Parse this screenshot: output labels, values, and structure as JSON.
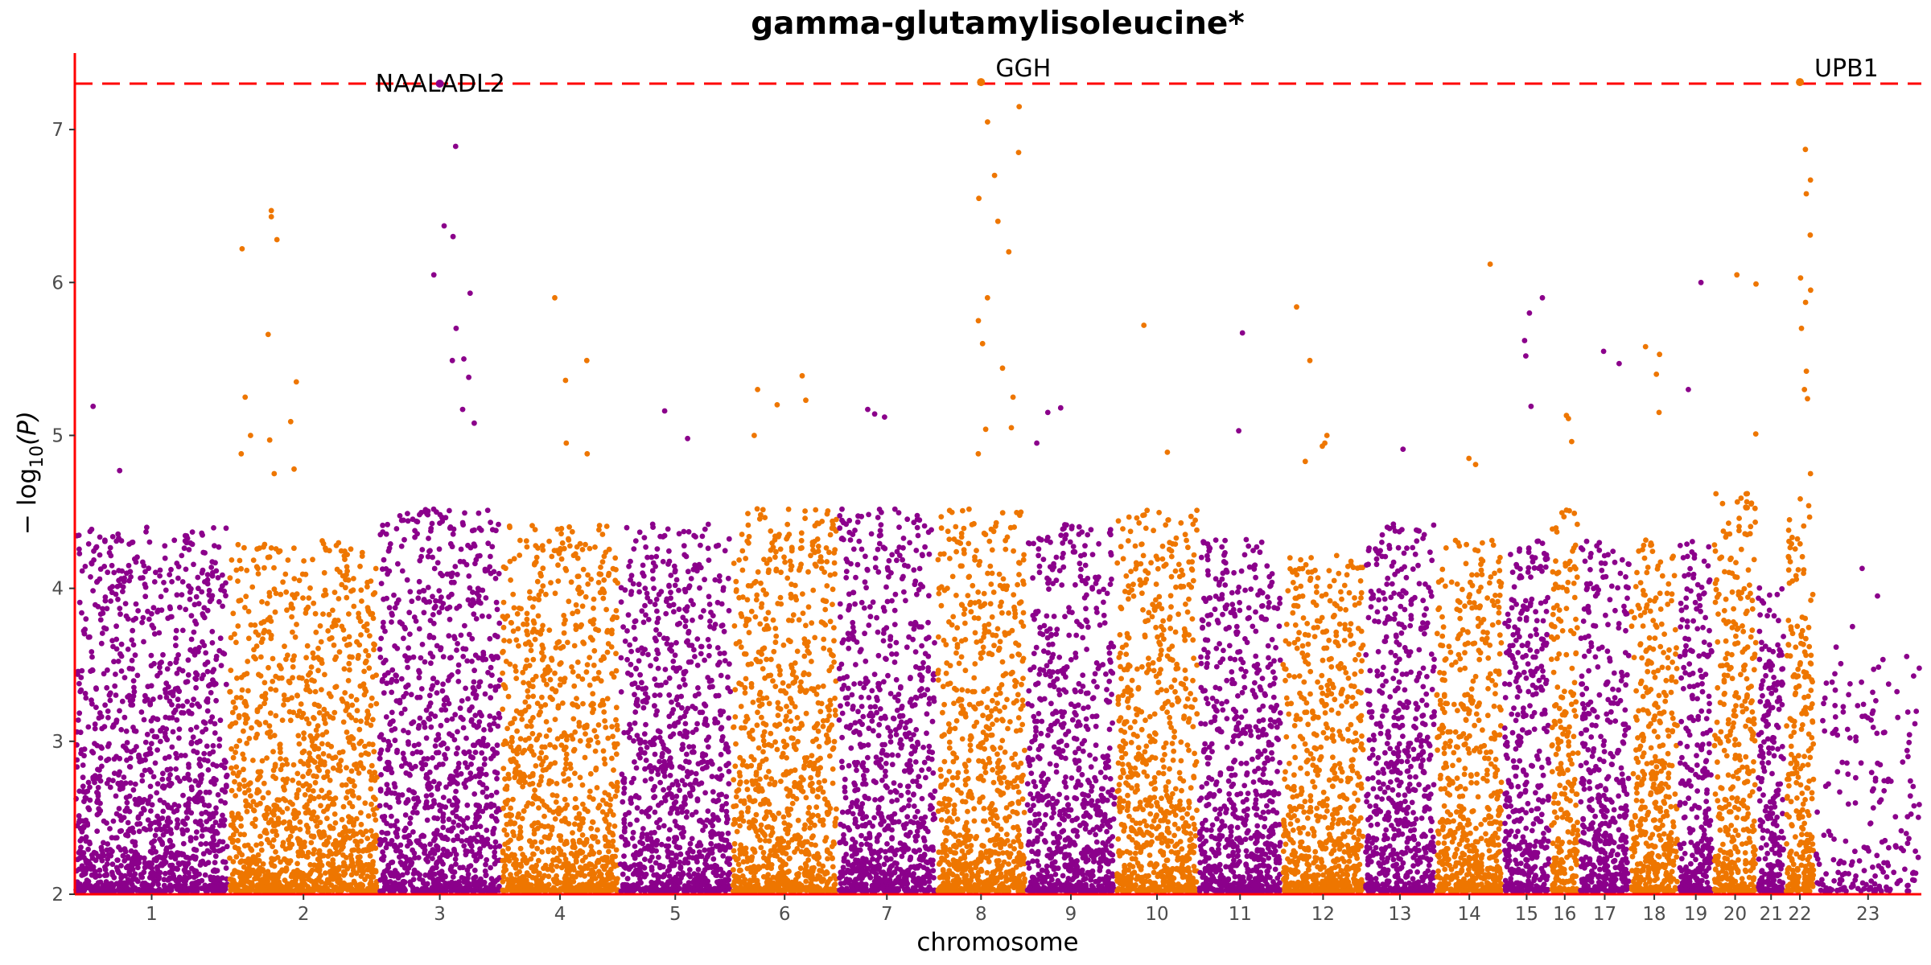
{
  "chart_data": {
    "type": "scatter",
    "subtype": "manhattan",
    "title": "gamma-glutamylisoleucine*",
    "xlabel": "chromosome",
    "ylabel": "−log10(P)",
    "ylim": [
      2,
      7.5
    ],
    "y_ticks": [
      2,
      3,
      4,
      5,
      6,
      7
    ],
    "grid": false,
    "legend": "none",
    "colors": {
      "odd": "#8B008B",
      "even": "#EE7600",
      "threshold": "#FF0000",
      "axis": "#FF0000"
    },
    "threshold": {
      "value": 7.3,
      "style": "dashed"
    },
    "chromosomes": [
      {
        "label": "1",
        "start": 0,
        "end": 248
      },
      {
        "label": "2",
        "start": 248,
        "end": 490
      },
      {
        "label": "3",
        "start": 490,
        "end": 688
      },
      {
        "label": "4",
        "start": 688,
        "end": 878
      },
      {
        "label": "5",
        "start": 878,
        "end": 1060
      },
      {
        "label": "6",
        "start": 1060,
        "end": 1231
      },
      {
        "label": "7",
        "start": 1231,
        "end": 1390
      },
      {
        "label": "8",
        "start": 1390,
        "end": 1535
      },
      {
        "label": "9",
        "start": 1535,
        "end": 1680
      },
      {
        "label": "10",
        "start": 1680,
        "end": 1813
      },
      {
        "label": "11",
        "start": 1813,
        "end": 1948
      },
      {
        "label": "12",
        "start": 1948,
        "end": 2081
      },
      {
        "label": "13",
        "start": 2081,
        "end": 2196
      },
      {
        "label": "14",
        "start": 2196,
        "end": 2305
      },
      {
        "label": "15",
        "start": 2305,
        "end": 2381
      },
      {
        "label": "16",
        "start": 2381,
        "end": 2428
      },
      {
        "label": "17",
        "start": 2428,
        "end": 2510
      },
      {
        "label": "18",
        "start": 2510,
        "end": 2588
      },
      {
        "label": "19",
        "start": 2588,
        "end": 2644
      },
      {
        "label": "20",
        "start": 2644,
        "end": 2715
      },
      {
        "label": "21",
        "start": 2715,
        "end": 2760
      },
      {
        "label": "22",
        "start": 2760,
        "end": 2808
      },
      {
        "label": "23",
        "start": 2808,
        "end": 2980
      }
    ],
    "annotated_hits": [
      {
        "gene": "NAALADL2",
        "chr": "3",
        "y": 7.3
      },
      {
        "gene": "GGH",
        "chr": "8",
        "y": 7.31
      },
      {
        "gene": "UPB1",
        "chr": "22",
        "y": 7.31
      }
    ],
    "peaks": [
      {
        "chr": "1",
        "y": 4.77
      },
      {
        "chr": "1",
        "y": 5.19
      },
      {
        "chr": "2",
        "y": 6.47
      },
      {
        "chr": "2",
        "y": 6.43
      },
      {
        "chr": "2",
        "y": 6.28
      },
      {
        "chr": "2",
        "y": 6.22
      },
      {
        "chr": "2",
        "y": 5.0
      },
      {
        "chr": "2",
        "y": 4.88
      },
      {
        "chr": "2",
        "y": 4.75
      },
      {
        "chr": "2",
        "y": 5.66
      },
      {
        "chr": "2",
        "y": 5.35
      },
      {
        "chr": "2",
        "y": 5.25
      },
      {
        "chr": "2",
        "y": 4.97
      },
      {
        "chr": "2",
        "y": 5.09
      },
      {
        "chr": "2",
        "y": 4.78
      },
      {
        "chr": "3",
        "y": 5.17
      },
      {
        "chr": "3",
        "y": 5.49
      },
      {
        "chr": "3",
        "y": 5.38
      },
      {
        "chr": "3",
        "y": 5.08
      },
      {
        "chr": "3",
        "y": 6.89
      },
      {
        "chr": "3",
        "y": 6.37
      },
      {
        "chr": "3",
        "y": 6.3
      },
      {
        "chr": "3",
        "y": 6.05
      },
      {
        "chr": "3",
        "y": 5.93
      },
      {
        "chr": "3",
        "y": 5.7
      },
      {
        "chr": "3",
        "y": 5.5
      },
      {
        "chr": "4",
        "y": 5.36
      },
      {
        "chr": "4",
        "y": 4.95
      },
      {
        "chr": "4",
        "y": 4.88
      },
      {
        "chr": "4",
        "y": 5.49
      },
      {
        "chr": "4",
        "y": 5.9
      },
      {
        "chr": "5",
        "y": 5.16
      },
      {
        "chr": "5",
        "y": 4.98
      },
      {
        "chr": "6",
        "y": 5.39
      },
      {
        "chr": "6",
        "y": 5.3
      },
      {
        "chr": "6",
        "y": 5.2
      },
      {
        "chr": "6",
        "y": 5.23
      },
      {
        "chr": "6",
        "y": 5.0
      },
      {
        "chr": "7",
        "y": 5.17
      },
      {
        "chr": "7",
        "y": 5.14
      },
      {
        "chr": "7",
        "y": 5.12
      },
      {
        "chr": "8",
        "y": 7.15
      },
      {
        "chr": "8",
        "y": 7.05
      },
      {
        "chr": "8",
        "y": 6.85
      },
      {
        "chr": "8",
        "y": 6.7
      },
      {
        "chr": "8",
        "y": 6.55
      },
      {
        "chr": "8",
        "y": 6.4
      },
      {
        "chr": "8",
        "y": 6.2
      },
      {
        "chr": "8",
        "y": 5.9
      },
      {
        "chr": "8",
        "y": 5.75
      },
      {
        "chr": "8",
        "y": 5.6
      },
      {
        "chr": "8",
        "y": 5.44
      },
      {
        "chr": "8",
        "y": 5.25
      },
      {
        "chr": "8",
        "y": 5.05
      },
      {
        "chr": "8",
        "y": 4.88
      },
      {
        "chr": "8",
        "y": 5.04
      },
      {
        "chr": "9",
        "y": 5.15
      },
      {
        "chr": "9",
        "y": 4.95
      },
      {
        "chr": "9",
        "y": 5.18
      },
      {
        "chr": "10",
        "y": 5.72
      },
      {
        "chr": "10",
        "y": 4.89
      },
      {
        "chr": "11",
        "y": 5.67
      },
      {
        "chr": "11",
        "y": 5.03
      },
      {
        "chr": "12",
        "y": 5.84
      },
      {
        "chr": "12",
        "y": 5.49
      },
      {
        "chr": "12",
        "y": 5.0
      },
      {
        "chr": "12",
        "y": 4.93
      },
      {
        "chr": "12",
        "y": 4.95
      },
      {
        "chr": "12",
        "y": 4.83
      },
      {
        "chr": "13",
        "y": 4.91
      },
      {
        "chr": "14",
        "y": 6.12
      },
      {
        "chr": "14",
        "y": 4.81
      },
      {
        "chr": "14",
        "y": 4.85
      },
      {
        "chr": "15",
        "y": 5.9
      },
      {
        "chr": "15",
        "y": 5.8
      },
      {
        "chr": "15",
        "y": 5.62
      },
      {
        "chr": "15",
        "y": 5.52
      },
      {
        "chr": "15",
        "y": 5.19
      },
      {
        "chr": "16",
        "y": 4.96
      },
      {
        "chr": "16",
        "y": 5.13
      },
      {
        "chr": "16",
        "y": 5.11
      },
      {
        "chr": "17",
        "y": 5.55
      },
      {
        "chr": "17",
        "y": 5.47
      },
      {
        "chr": "18",
        "y": 5.58
      },
      {
        "chr": "18",
        "y": 5.53
      },
      {
        "chr": "18",
        "y": 5.4
      },
      {
        "chr": "18",
        "y": 5.15
      },
      {
        "chr": "19",
        "y": 6.0
      },
      {
        "chr": "19",
        "y": 5.3
      },
      {
        "chr": "20",
        "y": 6.05
      },
      {
        "chr": "20",
        "y": 5.99
      },
      {
        "chr": "20",
        "y": 5.01
      },
      {
        "chr": "22",
        "y": 6.87
      },
      {
        "chr": "22",
        "y": 6.67
      },
      {
        "chr": "22",
        "y": 6.58
      },
      {
        "chr": "22",
        "y": 6.31
      },
      {
        "chr": "22",
        "y": 6.03
      },
      {
        "chr": "22",
        "y": 5.95
      },
      {
        "chr": "22",
        "y": 5.87
      },
      {
        "chr": "22",
        "y": 5.7
      },
      {
        "chr": "22",
        "y": 5.42
      },
      {
        "chr": "22",
        "y": 5.3
      },
      {
        "chr": "22",
        "y": 5.24
      },
      {
        "chr": "22",
        "y": 4.75
      },
      {
        "chr": "23",
        "y": 4.13
      },
      {
        "chr": "23",
        "y": 3.95
      },
      {
        "chr": "23",
        "y": 3.75
      }
    ],
    "background_top_by_chr": [
      {
        "chr": "1",
        "top": 4.4
      },
      {
        "chr": "2",
        "top": 4.3
      },
      {
        "chr": "3",
        "top": 4.5
      },
      {
        "chr": "4",
        "top": 4.4
      },
      {
        "chr": "5",
        "top": 4.4
      },
      {
        "chr": "6",
        "top": 4.5
      },
      {
        "chr": "7",
        "top": 4.5
      },
      {
        "chr": "8",
        "top": 4.5
      },
      {
        "chr": "9",
        "top": 4.4
      },
      {
        "chr": "10",
        "top": 4.5
      },
      {
        "chr": "11",
        "top": 4.3
      },
      {
        "chr": "12",
        "top": 4.2
      },
      {
        "chr": "13",
        "top": 4.4
      },
      {
        "chr": "14",
        "top": 4.3
      },
      {
        "chr": "15",
        "top": 4.3
      },
      {
        "chr": "16",
        "top": 4.5
      },
      {
        "chr": "17",
        "top": 4.3
      },
      {
        "chr": "18",
        "top": 4.3
      },
      {
        "chr": "19",
        "top": 4.3
      },
      {
        "chr": "20",
        "top": 4.6
      },
      {
        "chr": "21",
        "top": 4.0
      },
      {
        "chr": "22",
        "top": 4.6
      },
      {
        "chr": "23",
        "top": 3.6
      }
    ]
  }
}
